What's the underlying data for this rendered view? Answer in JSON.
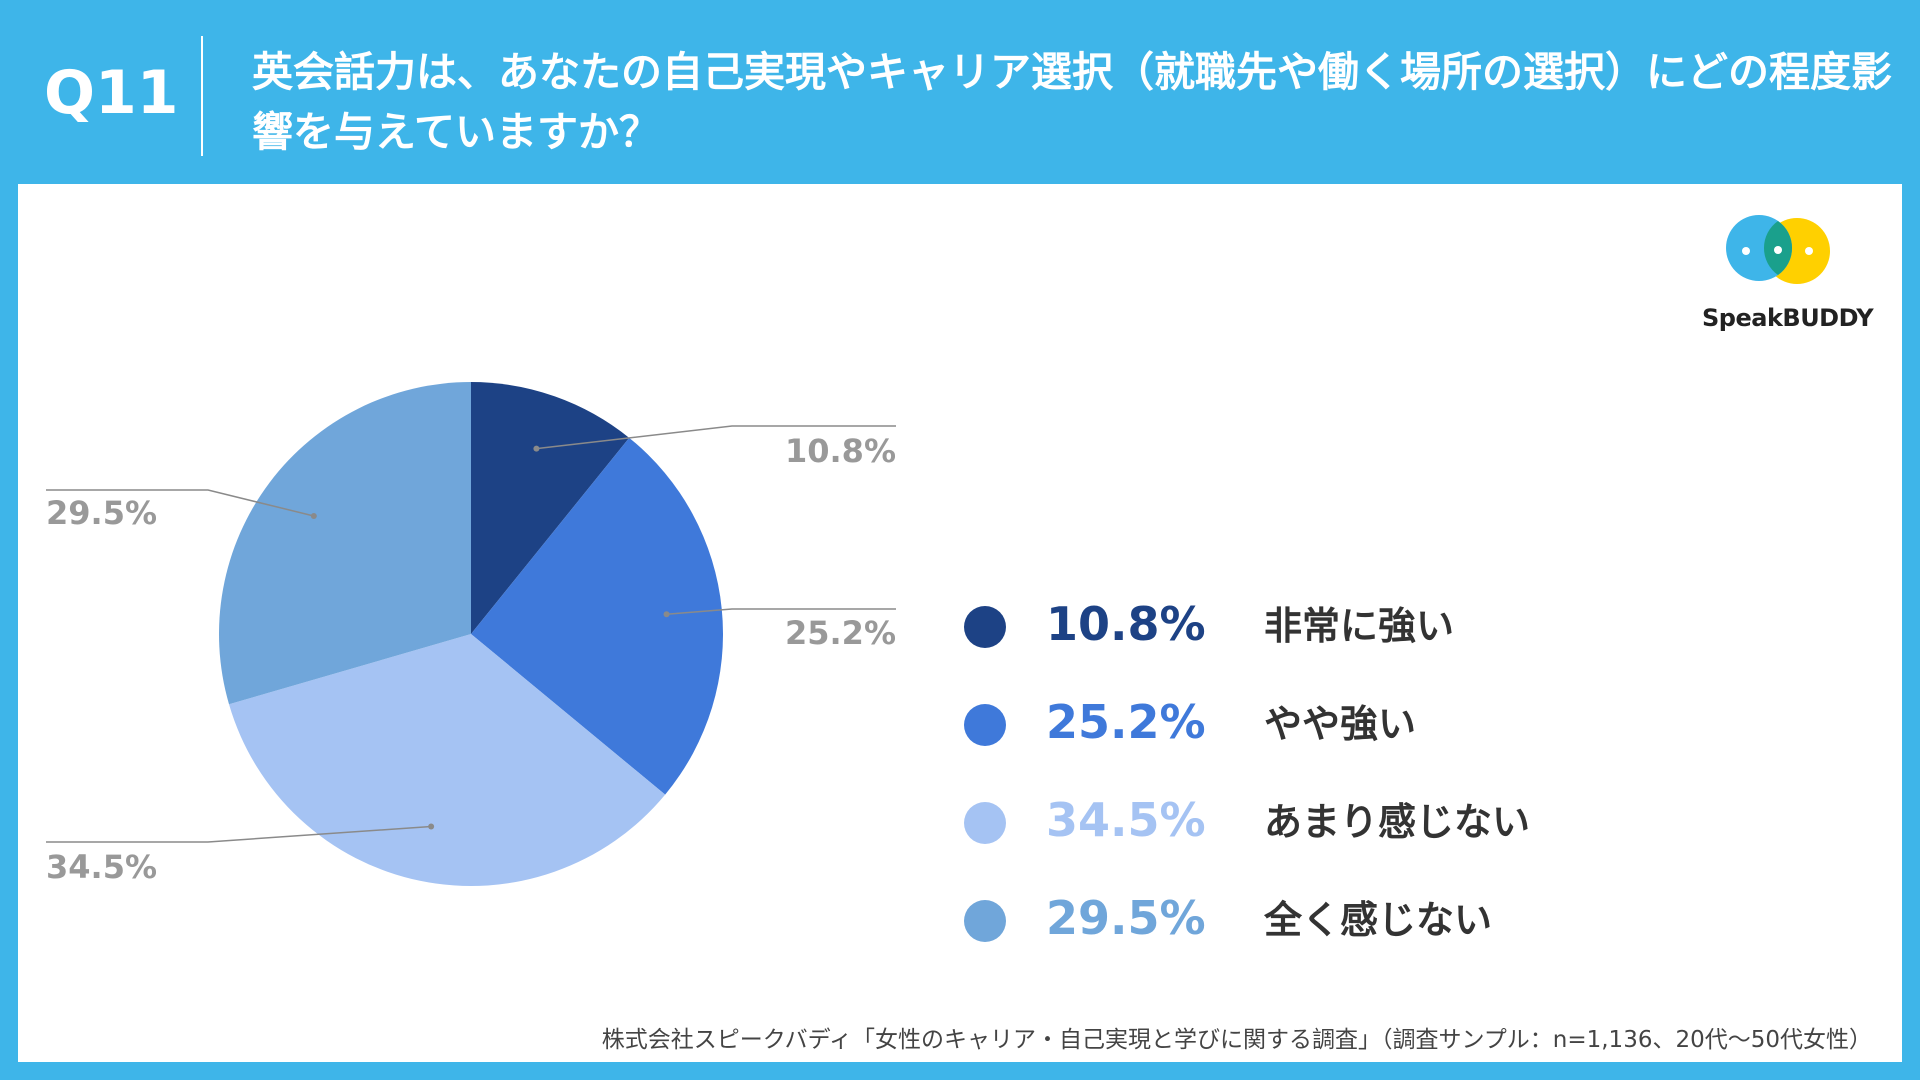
{
  "header": {
    "question_number": "Q11",
    "title": "英会話力は、あなたの自己実現やキャリア選択（就職先や働く場所の選択）にどの程度影響を与えていますか？"
  },
  "logo": {
    "name": "SpeakBUDDY"
  },
  "colors": {
    "header_bg": "#3eb5e9",
    "very_strong": "#1d4285",
    "somewhat_strong": "#3f79da",
    "not_much": "#a5c3f3",
    "not_at_all": "#70a6da"
  },
  "chart_data": {
    "type": "pie",
    "title": "",
    "start": "12 o'clock, clockwise",
    "slices": [
      {
        "label": "非常に強い",
        "value": 10.8,
        "display": "10.8%",
        "color": "#1d4285"
      },
      {
        "label": "やや強い",
        "value": 25.2,
        "display": "25.2%",
        "color": "#3f79da"
      },
      {
        "label": "あまり感じない",
        "value": 34.5,
        "display": "34.5%",
        "color": "#a5c3f3"
      },
      {
        "label": "全く感じない",
        "value": 29.5,
        "display": "29.5%",
        "color": "#70a6da"
      }
    ],
    "legend_placement": "right"
  },
  "source": "株式会社スピークバディ「女性のキャリア・自己実現と学びに関する調査」（調査サンプル：n=1,136、20代〜50代女性）"
}
